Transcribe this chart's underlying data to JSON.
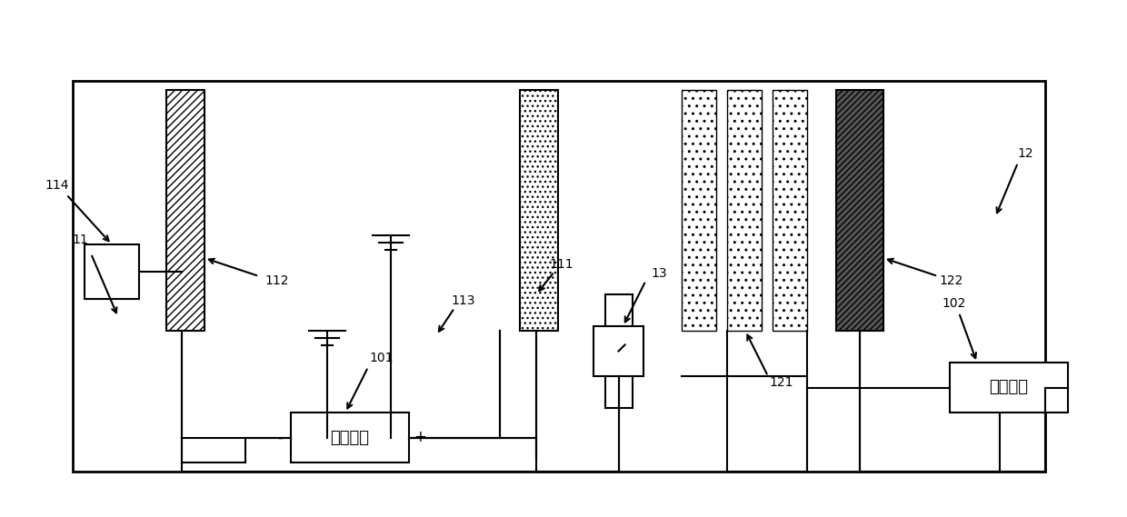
{
  "bg_color": "#ffffff",
  "line_color": "#000000",
  "box_fill": "#ffffff",
  "label_101": "101",
  "label_102": "102",
  "label_11": "11",
  "label_12": "12",
  "label_13": "13",
  "label_111": "111",
  "label_112": "112",
  "label_113": "113",
  "label_114": "114",
  "label_121": "121",
  "label_122": "122",
  "text_dc": "直流电源",
  "text_ac": "交流电源",
  "figsize": [
    12.4,
    5.69
  ],
  "dpi": 100
}
